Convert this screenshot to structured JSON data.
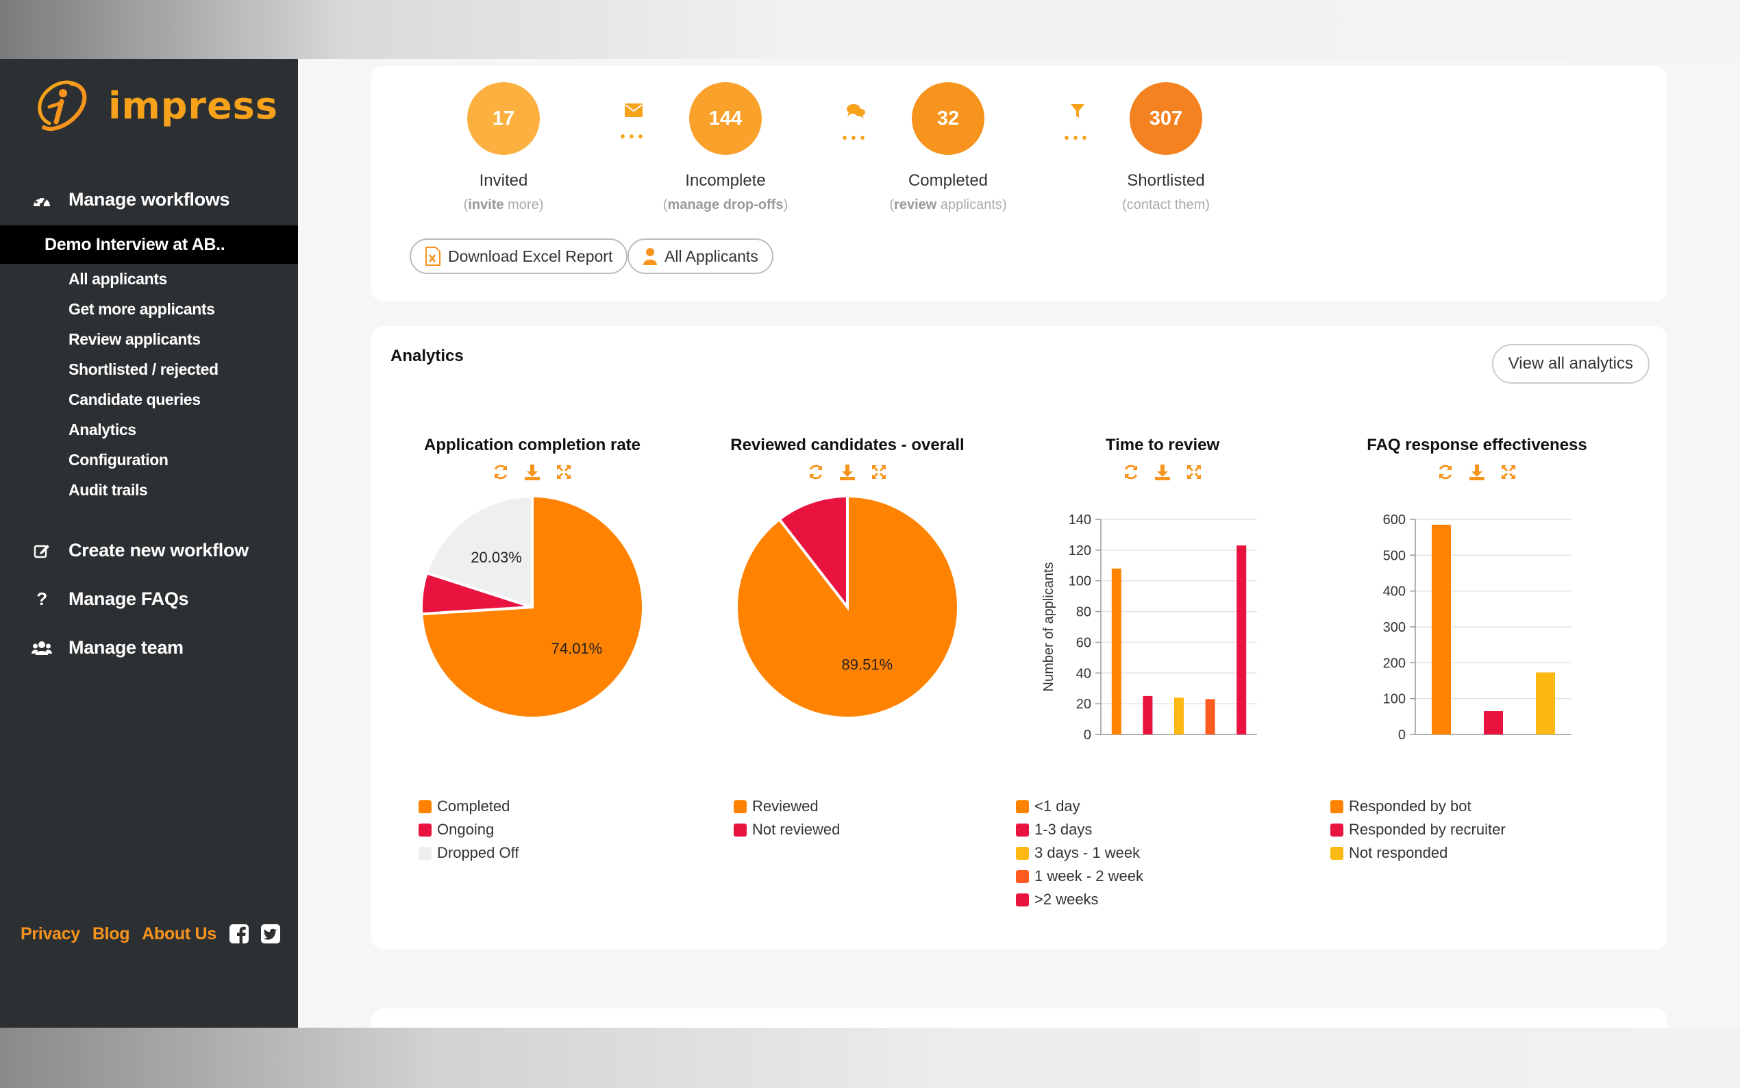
{
  "brand": {
    "name": "impress",
    "color": "#f7a21b"
  },
  "sidebar": {
    "main_items": [
      {
        "label": "Manage workflows",
        "icon": "dashboard-icon"
      },
      {
        "label": "Create new workflow",
        "icon": "edit-icon"
      },
      {
        "label": "Manage FAQs",
        "icon": "question-icon"
      },
      {
        "label": "Manage team",
        "icon": "users-icon"
      }
    ],
    "active_workflow": "Demo Interview at AB..",
    "sub_items": [
      "All applicants",
      "Get more applicants",
      "Review applicants",
      "Shortlisted / rejected",
      "Candidate queries",
      "Analytics",
      "Configuration",
      "Audit trails"
    ],
    "footer_links": [
      "Privacy",
      "Blog",
      "About Us"
    ]
  },
  "pipeline": {
    "stages": [
      {
        "count": "17",
        "label": "Invited",
        "hint_bold": "invite",
        "hint_rest": " more",
        "color": "#fbb040"
      },
      {
        "count": "144",
        "label": "Incomplete",
        "hint_bold": "manage drop-offs",
        "hint_rest": "",
        "color": "#f9a12b"
      },
      {
        "count": "32",
        "label": "Completed",
        "hint_bold": "review",
        "hint_rest": " applicants",
        "color": "#f7941d"
      },
      {
        "count": "307",
        "label": "Shortlisted",
        "hint_bold": "",
        "hint_rest": "contact them",
        "color": "#f58220"
      }
    ],
    "buttons": {
      "download": "Download Excel Report",
      "all_applicants": "All Applicants"
    }
  },
  "analytics": {
    "title": "Analytics",
    "view_all": "View all analytics"
  },
  "chart_data": [
    {
      "type": "pie",
      "title": "Application completion rate",
      "slices": [
        {
          "label": "Completed",
          "value": 74.01,
          "color": "#ff8200",
          "show_label": "74.01%"
        },
        {
          "label": "Ongoing",
          "value": 5.96,
          "color": "#e8133f",
          "show_label": ""
        },
        {
          "label": "Dropped Off",
          "value": 20.03,
          "color": "#efefef",
          "show_label": "20.03%"
        }
      ]
    },
    {
      "type": "pie",
      "title": "Reviewed candidates - overall",
      "slices": [
        {
          "label": "Reviewed",
          "value": 89.51,
          "color": "#ff8200",
          "show_label": "89.51%"
        },
        {
          "label": "Not reviewed",
          "value": 10.49,
          "color": "#e8133f",
          "show_label": ""
        }
      ]
    },
    {
      "type": "bar",
      "title": "Time to review",
      "ylabel": "Number of applicants",
      "ylim": [
        0,
        140
      ],
      "yticks": [
        0,
        20,
        40,
        60,
        80,
        100,
        120,
        140
      ],
      "categories": [
        "<1 day",
        "1-3 days",
        "3 days - 1 week",
        "1 week - 2 week",
        ">2 weeks"
      ],
      "values": [
        108,
        25,
        24,
        23,
        123
      ],
      "colors": [
        "#ff8200",
        "#e8133f",
        "#fdb913",
        "#ff5a1f",
        "#e8133f"
      ]
    },
    {
      "type": "bar",
      "title": "FAQ response effectiveness",
      "ylabel": "",
      "ylim": [
        0,
        600
      ],
      "yticks": [
        0,
        100,
        200,
        300,
        400,
        500,
        600
      ],
      "categories": [
        "Responded by bot",
        "Responded by recruiter",
        "Not responded"
      ],
      "values": [
        585,
        65,
        173
      ],
      "colors": [
        "#ff8200",
        "#e8133f",
        "#fdb913"
      ]
    }
  ]
}
